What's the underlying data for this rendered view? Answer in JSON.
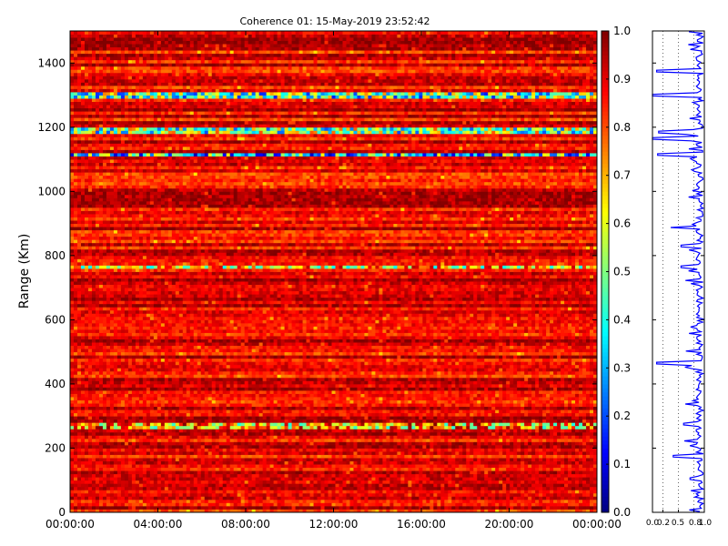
{
  "chart_data": [
    {
      "type": "heatmap",
      "title": "Coherence 01: 15-May-2019 23:52:42",
      "ylabel": "Range (Km)",
      "xlabel": "",
      "xlim_hours": [
        0,
        24
      ],
      "x_ticks": [
        "00:00:00",
        "04:00:00",
        "08:00:00",
        "12:00:00",
        "16:00:00",
        "20:00:00",
        "00:00:00"
      ],
      "ylim": [
        0,
        1500
      ],
      "y_ticks": [
        0,
        200,
        400,
        600,
        800,
        1000,
        1200,
        1400
      ],
      "colormap": "jet",
      "colorbar_range": [
        0,
        1
      ],
      "colorbar_ticks": [
        "0.0",
        "0.1",
        "0.2",
        "0.3",
        "0.4",
        "0.5",
        "0.6",
        "0.7",
        "0.8",
        "0.9",
        "1.0"
      ],
      "bands": [
        {
          "range_km": [
            1295,
            1310
          ],
          "value": 0.45
        },
        {
          "range_km": [
            1180,
            1196
          ],
          "value": 0.5
        },
        {
          "range_km": [
            1108,
            1122
          ],
          "value": 0.35
        },
        {
          "range_km": [
            756,
            768
          ],
          "value": 0.65
        },
        {
          "range_km": [
            262,
            282
          ],
          "value": 0.7
        }
      ],
      "background_value_range": [
        0.8,
        1.0
      ]
    },
    {
      "type": "line",
      "xlim": [
        0,
        1
      ],
      "x_ticks": [
        "0.0",
        "0.2",
        "0.5",
        "0.8",
        "1.0"
      ],
      "ylim": [
        0,
        1500
      ],
      "grid": "vertical dotted",
      "line_color": "#0000ff",
      "dips": [
        {
          "range_km": 1375,
          "value": 0.08
        },
        {
          "range_km": 1300,
          "value": 0.0
        },
        {
          "range_km": 1185,
          "value": 0.12
        },
        {
          "range_km": 1165,
          "value": 0.0
        },
        {
          "range_km": 1115,
          "value": 0.1
        },
        {
          "range_km": 888,
          "value": 0.35
        },
        {
          "range_km": 830,
          "value": 0.55
        },
        {
          "range_km": 765,
          "value": 0.55
        },
        {
          "range_km": 465,
          "value": 0.08
        },
        {
          "range_km": 275,
          "value": 0.6
        },
        {
          "range_km": 175,
          "value": 0.4
        }
      ]
    }
  ]
}
